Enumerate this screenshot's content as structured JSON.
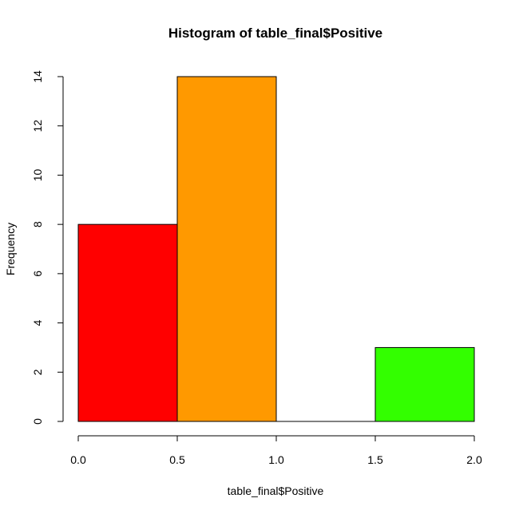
{
  "chart_data": {
    "type": "bar",
    "title": "Histogram of table_final$Positive",
    "xlabel": "table_final$Positive",
    "ylabel": "Frequency",
    "bins": [
      {
        "from": 0.0,
        "to": 0.5,
        "count": 8,
        "color": "#ff0000"
      },
      {
        "from": 0.5,
        "to": 1.0,
        "count": 14,
        "color": "#ff9900"
      },
      {
        "from": 1.0,
        "to": 1.5,
        "count": 0,
        "color": "#ccff00"
      },
      {
        "from": 1.5,
        "to": 2.0,
        "count": 3,
        "color": "#33ff00"
      }
    ],
    "xlim": [
      0.0,
      2.0
    ],
    "ylim": [
      0,
      14
    ],
    "xticks": [
      "0.0",
      "0.5",
      "1.0",
      "1.5",
      "2.0"
    ],
    "yticks": [
      "0",
      "2",
      "4",
      "6",
      "8",
      "10",
      "12",
      "14"
    ],
    "grid": false,
    "legend": "none"
  }
}
